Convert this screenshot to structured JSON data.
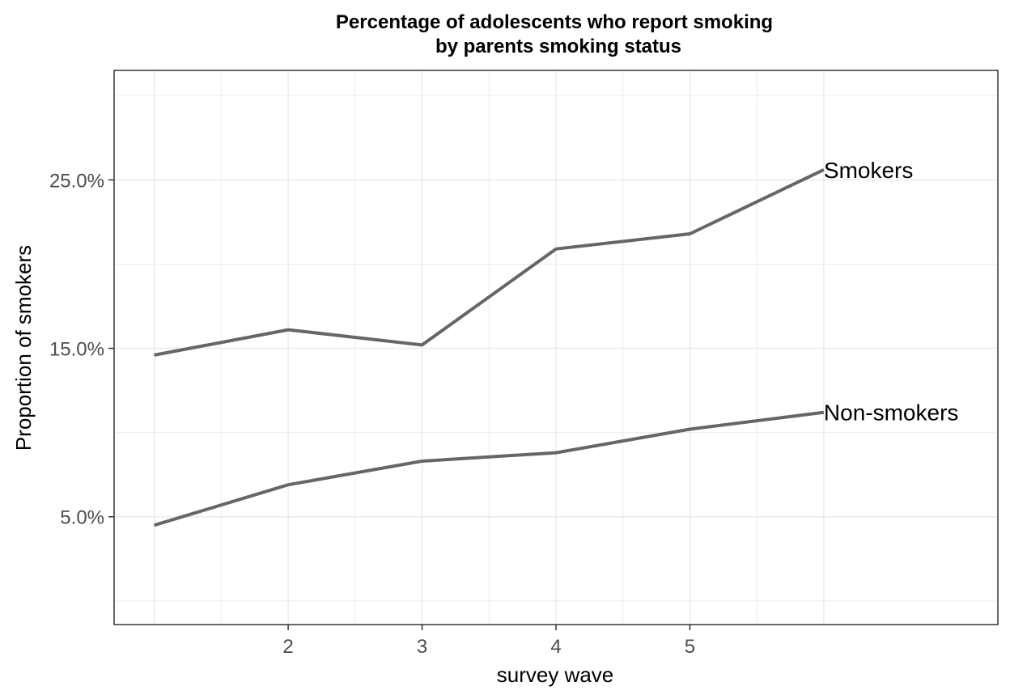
{
  "chart_data": {
    "type": "line",
    "title": "Percentage of adolescents who report smoking",
    "subtitle": "by parents smoking status",
    "xlabel": "survey wave",
    "ylabel": "Proportion of smokers",
    "x": [
      1,
      2,
      3,
      4,
      5,
      6
    ],
    "x_ticks": [
      "2",
      "3",
      "4",
      "5"
    ],
    "x_tick_values": [
      2,
      3,
      4,
      5
    ],
    "xlim": [
      0.7,
      7.3
    ],
    "y_ticks": [
      "5.0%",
      "15.0%",
      "25.0%"
    ],
    "y_tick_values": [
      5,
      15,
      25
    ],
    "y_minor_values": [
      0,
      10,
      20,
      30
    ],
    "ylim": [
      -1.4,
      31.5
    ],
    "grid": true,
    "series": [
      {
        "name": "Smokers",
        "values": [
          14.6,
          16.1,
          15.2,
          20.9,
          21.8,
          25.6
        ]
      },
      {
        "name": "Non-smokers",
        "values": [
          4.5,
          6.9,
          8.3,
          8.8,
          10.2,
          11.2
        ]
      }
    ],
    "line_color": "#666666",
    "grid_color": "#ebebeb",
    "panel_border_color": "#333333"
  }
}
